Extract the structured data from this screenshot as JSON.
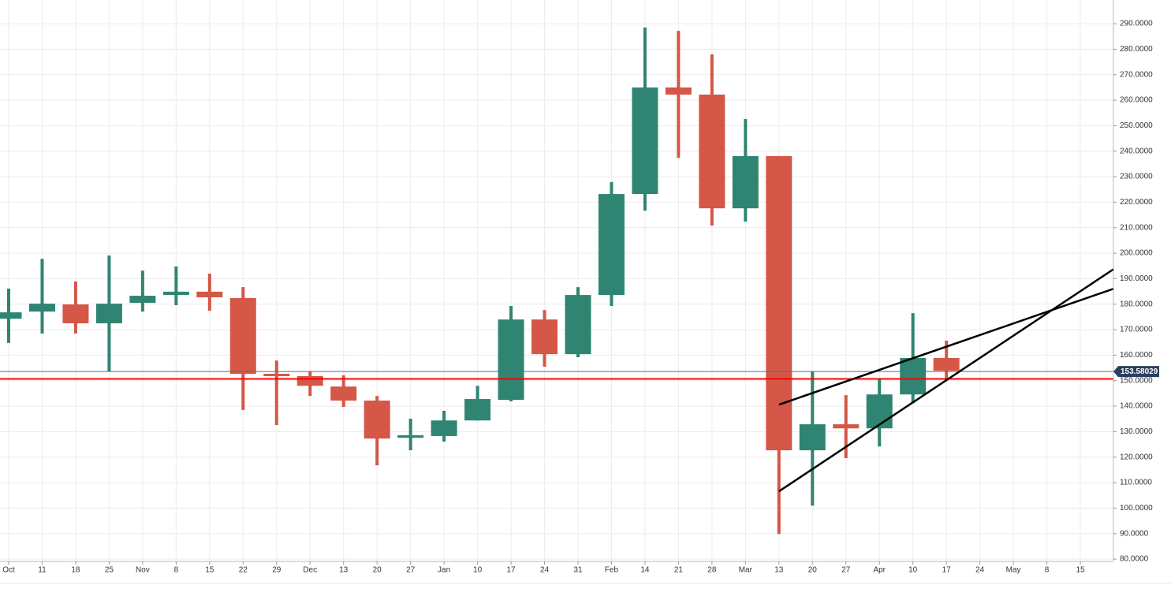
{
  "chart_data": {
    "type": "candlestick",
    "categories": [
      "Oct",
      "11",
      "18",
      "25",
      "Nov",
      "8",
      "15",
      "22",
      "29",
      "Dec",
      "13",
      "20",
      "27",
      "Jan",
      "10",
      "17",
      "24",
      "31",
      "Feb",
      "14",
      "21",
      "28",
      "Mar",
      "13",
      "20",
      "27",
      "Apr",
      "10",
      "17",
      "24",
      "May",
      "8",
      "15"
    ],
    "open": [
      174.3,
      177.1,
      179.9,
      172.5,
      180.5,
      183.6,
      184.9,
      182.4,
      152.7,
      151.8,
      147.7,
      142.2,
      127.6,
      128.3,
      134.4,
      142.5,
      174.0,
      160.4,
      183.6,
      223.2,
      265.0,
      262.2,
      217.6,
      238.1,
      122.7,
      132.9,
      131.3,
      144.6,
      158.9,
      null,
      null,
      null,
      null
    ],
    "high": [
      186.1,
      197.8,
      188.9,
      199.1,
      193.2,
      194.8,
      192.0,
      186.7,
      157.9,
      153.6,
      152.1,
      144.0,
      135.1,
      138.2,
      148.0,
      179.3,
      177.7,
      186.7,
      227.9,
      288.5,
      287.2,
      278.0,
      252.6,
      238.1,
      153.6,
      144.3,
      150.5,
      176.5,
      165.7,
      null,
      null,
      null,
      null
    ],
    "low": [
      164.8,
      168.5,
      168.5,
      153.6,
      177.1,
      179.6,
      177.4,
      138.5,
      132.6,
      144.0,
      139.7,
      116.8,
      122.7,
      126.1,
      134.4,
      141.9,
      155.5,
      159.2,
      179.3,
      216.7,
      237.4,
      210.8,
      212.4,
      89.9,
      101.0,
      119.6,
      124.2,
      141.2,
      150.2,
      null,
      null,
      null,
      null
    ],
    "close": [
      176.8,
      180.2,
      172.5,
      180.2,
      183.3,
      184.9,
      182.7,
      152.7,
      152.1,
      148.0,
      142.2,
      127.3,
      128.6,
      134.4,
      142.8,
      174.0,
      160.4,
      183.6,
      223.2,
      265.0,
      262.2,
      217.6,
      238.1,
      122.7,
      132.9,
      131.3,
      144.6,
      158.9,
      153.9,
      null,
      null,
      null,
      null
    ],
    "up_color": "#2f8572",
    "down_color": "#d45747",
    "ylim": [
      79.1,
      299.3
    ],
    "yticks": [
      {
        "value": 80,
        "label": "80.0000"
      },
      {
        "value": 90,
        "label": "90.0000"
      },
      {
        "value": 100,
        "label": "100.0000"
      },
      {
        "value": 110,
        "label": "110.0000"
      },
      {
        "value": 120,
        "label": "120.0000"
      },
      {
        "value": 130,
        "label": "130.0000"
      },
      {
        "value": 140,
        "label": "140.0000"
      },
      {
        "value": 150,
        "label": "150.0000"
      },
      {
        "value": 160,
        "label": "160.0000"
      },
      {
        "value": 170,
        "label": "170.0000"
      },
      {
        "value": 180,
        "label": "180.0000"
      },
      {
        "value": 190,
        "label": "190.0000"
      },
      {
        "value": 200,
        "label": "200.0000"
      },
      {
        "value": 210,
        "label": "210.0000"
      },
      {
        "value": 220,
        "label": "220.0000"
      },
      {
        "value": 230,
        "label": "230.0000"
      },
      {
        "value": 240,
        "label": "240.0000"
      },
      {
        "value": 250,
        "label": "250.0000"
      },
      {
        "value": 260,
        "label": "260.0000"
      },
      {
        "value": 270,
        "label": "270.0000"
      },
      {
        "value": 280,
        "label": "280.0000"
      },
      {
        "value": 290,
        "label": "290.0000"
      }
    ],
    "grid": true,
    "last_price": 153.58029,
    "hline": {
      "value": 150.7,
      "color": "#ff0000"
    },
    "trendlines": [
      {
        "x": [
          23,
          33
        ],
        "y": [
          140.6,
          186.1
        ],
        "color": "#000000"
      },
      {
        "x": [
          23,
          33
        ],
        "y": [
          106.6,
          193.8
        ],
        "color": "#000000"
      }
    ]
  }
}
